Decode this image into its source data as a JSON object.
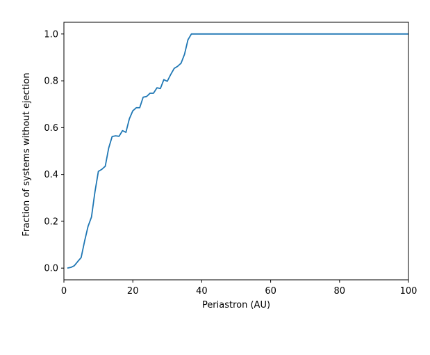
{
  "chart_data": {
    "type": "line",
    "title": "",
    "xlabel": "Periastron (AU)",
    "ylabel": "Fraction of systems without ejection",
    "xlim": [
      0,
      100
    ],
    "ylim": [
      -0.05,
      1.05
    ],
    "xticks": [
      0,
      20,
      40,
      60,
      80,
      100
    ],
    "xtick_labels": [
      "0",
      "20",
      "40",
      "60",
      "80",
      "100"
    ],
    "yticks": [
      0.0,
      0.2,
      0.4,
      0.6,
      0.8,
      1.0
    ],
    "ytick_labels": [
      "0.0",
      "0.2",
      "0.4",
      "0.6",
      "0.8",
      "1.0"
    ],
    "grid": false,
    "legend": "none",
    "series": [
      {
        "color": "#1f77b4",
        "x": [
          1,
          2,
          3,
          4,
          5,
          6,
          7,
          8,
          9,
          10,
          11,
          12,
          13,
          14,
          15,
          16,
          17,
          18,
          19,
          20,
          21,
          22,
          23,
          24,
          25,
          26,
          27,
          28,
          29,
          30,
          31,
          32,
          33,
          34,
          35,
          36,
          37,
          38,
          40,
          50,
          60,
          70,
          80,
          90,
          100
        ],
        "y": [
          0.0,
          0.003,
          0.01,
          0.028,
          0.045,
          0.115,
          0.178,
          0.218,
          0.325,
          0.413,
          0.422,
          0.435,
          0.513,
          0.562,
          0.565,
          0.563,
          0.587,
          0.58,
          0.638,
          0.672,
          0.685,
          0.685,
          0.73,
          0.733,
          0.747,
          0.747,
          0.77,
          0.767,
          0.805,
          0.798,
          0.827,
          0.853,
          0.862,
          0.875,
          0.913,
          0.975,
          1.0,
          1.0,
          1.0,
          1.0,
          1.0,
          1.0,
          1.0,
          1.0,
          1.0
        ]
      }
    ]
  }
}
